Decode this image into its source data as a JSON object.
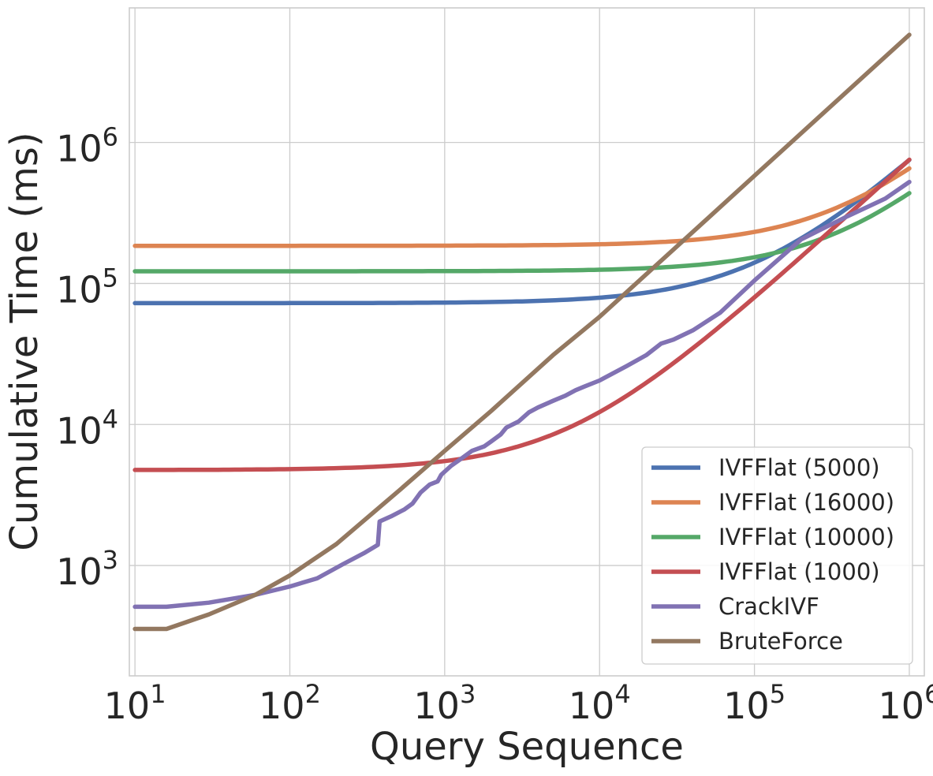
{
  "chart_data": {
    "type": "line",
    "title": "",
    "xlabel": "Query Sequence",
    "ylabel": "Cumulative Time (ms)",
    "xscale": "log",
    "yscale": "log",
    "xlim": [
      9.2,
      1250000
    ],
    "ylim": [
      165,
      9000000
    ],
    "grid": true,
    "legend_position": "lower-right",
    "x_ticks": [
      {
        "base": "10",
        "exp": "1",
        "value": 10
      },
      {
        "base": "10",
        "exp": "2",
        "value": 100
      },
      {
        "base": "10",
        "exp": "3",
        "value": 1000
      },
      {
        "base": "10",
        "exp": "4",
        "value": 10000
      },
      {
        "base": "10",
        "exp": "5",
        "value": 100000
      },
      {
        "base": "10",
        "exp": "6",
        "value": 1000000
      }
    ],
    "y_ticks": [
      {
        "base": "10",
        "exp": "3",
        "value": 1000
      },
      {
        "base": "10",
        "exp": "4",
        "value": 10000
      },
      {
        "base": "10",
        "exp": "5",
        "value": 100000
      },
      {
        "base": "10",
        "exp": "6",
        "value": 1000000
      }
    ],
    "series": [
      {
        "name": "IVFFlat (5000)",
        "color": "#4c72b0",
        "model": "linear",
        "base": 72500,
        "rate": 0.68,
        "x_start": 10,
        "x_end": 1000000
      },
      {
        "name": "IVFFlat (16000)",
        "color": "#dd8452",
        "model": "linear",
        "base": 185000,
        "rate": 0.47,
        "x_start": 10,
        "x_end": 1000000
      },
      {
        "name": "IVFFlat (10000)",
        "color": "#55a868",
        "model": "linear",
        "base": 122000,
        "rate": 0.315,
        "x_start": 10,
        "x_end": 1000000
      },
      {
        "name": "IVFFlat (1000)",
        "color": "#c44e52",
        "model": "linear",
        "base": 4750,
        "rate": 0.75,
        "x_start": 10,
        "x_end": 1000000
      },
      {
        "name": "CrackIVF",
        "color": "#8172b3",
        "model": "points",
        "points": [
          [
            10,
            510
          ],
          [
            16,
            510
          ],
          [
            30,
            545
          ],
          [
            60,
            620
          ],
          [
            100,
            710
          ],
          [
            150,
            810
          ],
          [
            220,
            1020
          ],
          [
            300,
            1220
          ],
          [
            370,
            1400
          ],
          [
            380,
            2050
          ],
          [
            450,
            2230
          ],
          [
            550,
            2500
          ],
          [
            620,
            2750
          ],
          [
            700,
            3300
          ],
          [
            800,
            3750
          ],
          [
            900,
            3950
          ],
          [
            950,
            4400
          ],
          [
            1100,
            5100
          ],
          [
            1300,
            5800
          ],
          [
            1500,
            6500
          ],
          [
            1800,
            7000
          ],
          [
            2000,
            7600
          ],
          [
            2300,
            8500
          ],
          [
            2500,
            9500
          ],
          [
            3000,
            10500
          ],
          [
            3500,
            12200
          ],
          [
            4000,
            13200
          ],
          [
            5000,
            14700
          ],
          [
            6000,
            16000
          ],
          [
            7000,
            17500
          ],
          [
            8000,
            18600
          ],
          [
            10000,
            20500
          ],
          [
            15000,
            26000
          ],
          [
            20000,
            31000
          ],
          [
            25000,
            37500
          ],
          [
            30000,
            40000
          ],
          [
            40000,
            46500
          ],
          [
            60000,
            62000
          ],
          [
            100000,
            105000
          ],
          [
            200000,
            205000
          ],
          [
            400000,
            300000
          ],
          [
            700000,
            400000
          ],
          [
            1000000,
            525000
          ]
        ]
      },
      {
        "name": "BruteForce",
        "color": "#937860",
        "model": "points",
        "points": [
          [
            10,
            355
          ],
          [
            16,
            355
          ],
          [
            30,
            450
          ],
          [
            60,
            620
          ],
          [
            100,
            850
          ],
          [
            200,
            1420
          ],
          [
            500,
            3350
          ],
          [
            1000,
            6500
          ],
          [
            2000,
            12500
          ],
          [
            5000,
            31000
          ],
          [
            10000,
            58000
          ],
          [
            20000,
            116000
          ],
          [
            50000,
            290000
          ],
          [
            100000,
            580000
          ],
          [
            200000,
            1160000
          ],
          [
            500000,
            2900000
          ],
          [
            1000000,
            5800000
          ]
        ]
      }
    ]
  }
}
